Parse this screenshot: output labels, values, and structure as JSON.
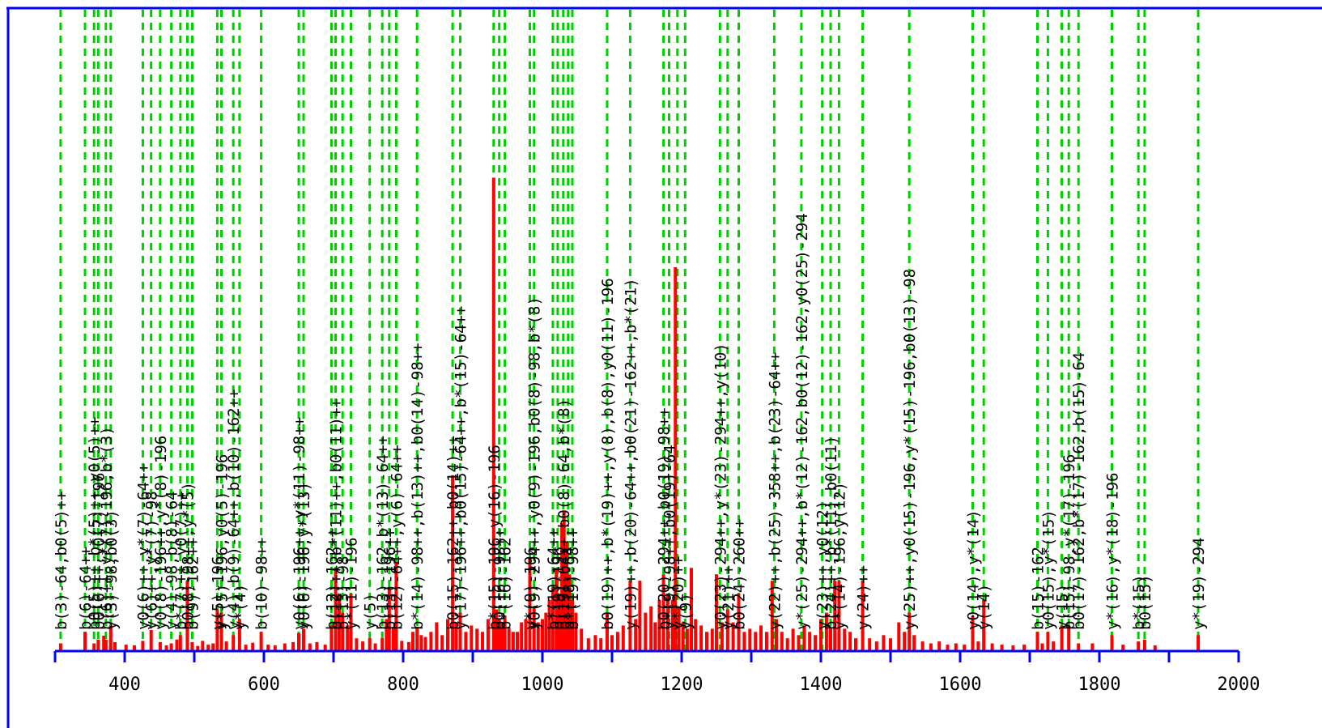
{
  "chart_data": {
    "type": "bar",
    "title": "",
    "xlabel": "",
    "ylabel": "",
    "xlim": [
      300,
      2000
    ],
    "x_ticks": [
      400,
      600,
      800,
      1000,
      1200,
      1400,
      1600,
      1800,
      2000
    ],
    "grid": false,
    "colors": {
      "peaks": "#ff0000",
      "annotation_lines": "#00cc00",
      "axis": "#0000ff",
      "text": "#000000"
    },
    "annotations": [
      {
        "x": 308,
        "text": "b(3)-64,b0(5)++"
      },
      {
        "x": 343,
        "text": "b(6)-64++"
      },
      {
        "x": 356,
        "text": "b0(5)++,b*(5)++,y0(5)++"
      },
      {
        "x": 362,
        "text": "b0(6)++,y0(7)-196"
      },
      {
        "x": 373,
        "text": "b(6)++,y*(7)-196,b*(3)"
      },
      {
        "x": 380,
        "text": "y(3)-98,b0(3)"
      },
      {
        "x": 426,
        "text": "y0(6)++,y*(7)-64++"
      },
      {
        "x": 438,
        "text": "y(6)++,y*(7)-98"
      },
      {
        "x": 451,
        "text": "y0(8)-196++,y*(8)-196"
      },
      {
        "x": 467,
        "text": "y(4)-98,b(8)-64"
      },
      {
        "x": 480,
        "text": "b*(7)++,y0(7)++"
      },
      {
        "x": 490,
        "text": "b0(8)-98++,y*(5)"
      },
      {
        "x": 497,
        "text": "b(9)-162++"
      },
      {
        "x": 533,
        "text": "y(5)-196"
      },
      {
        "x": 539,
        "text": "y*(5)-196,y0(5)-196"
      },
      {
        "x": 556,
        "text": "y(4),b(9)-64++,b(10)-162++"
      },
      {
        "x": 565,
        "text": "y*(4)"
      },
      {
        "x": 596,
        "text": "b(10)-98++"
      },
      {
        "x": 650,
        "text": "y0(6)-196++,y*(11)-98++"
      },
      {
        "x": 657,
        "text": "y0(6)-196,y*(13)"
      },
      {
        "x": 697,
        "text": "b(12)-162++"
      },
      {
        "x": 703,
        "text": "b(12)++,b*(11)++,b0(11)++"
      },
      {
        "x": 713,
        "text": "b(13)-98"
      },
      {
        "x": 725,
        "text": "y*(11)-196"
      },
      {
        "x": 752,
        "text": "y(5)"
      },
      {
        "x": 770,
        "text": "b(13)-162,b*(13)-64++"
      },
      {
        "x": 780,
        "text": "b(13)-196++"
      },
      {
        "x": 790,
        "text": "b(12)-64++,y(6)-64++"
      },
      {
        "x": 820,
        "text": "b*(14)-98++,b(13)++,b0(14)-98++"
      },
      {
        "x": 871,
        "text": "b0(15)-162++,b0(14)++"
      },
      {
        "x": 882,
        "text": "y(17)-196++,b0(15)-64++,b*(15)-64++"
      },
      {
        "x": 930,
        "text": "b*(15)-196,y(16)-196"
      },
      {
        "x": 938,
        "text": "b0(16)-98++"
      },
      {
        "x": 946,
        "text": "b*(16)-162"
      },
      {
        "x": 982,
        "text": "y*(9)-196"
      },
      {
        "x": 988,
        "text": "y0(9)-294++,y0(9)-196,b0(8)-98,b*(8)"
      },
      {
        "x": 1015,
        "text": "b*(19)-64++"
      },
      {
        "x": 1022,
        "text": "b(19)-196"
      },
      {
        "x": 1030,
        "text": "b(19)-64++,b0(8)-64,b*(8)"
      },
      {
        "x": 1037,
        "text": "b*(18)-64"
      },
      {
        "x": 1043,
        "text": "b*(19)-98++"
      },
      {
        "x": 1093,
        "text": "b0(19)++,b*(19)++,y(8),b(8),y0(11)-196"
      },
      {
        "x": 1126,
        "text": "y(19)++,b(20)-64++,b0(21)-162++,b*(21)"
      },
      {
        "x": 1174,
        "text": "b0(20)-294++,b0(19)-98++"
      },
      {
        "x": 1182,
        "text": "y*(9)-98++,b0(19)-64"
      },
      {
        "x": 1194,
        "text": "y*(20)++"
      },
      {
        "x": 1205,
        "text": "y(9)"
      },
      {
        "x": 1255,
        "text": "y0(23)-294++,y*(23)-294++,y(10)"
      },
      {
        "x": 1266,
        "text": "y(21)++"
      },
      {
        "x": 1282,
        "text": "b0(24)-260++"
      },
      {
        "x": 1333,
        "text": "y(22)++,b(25)-358++,b(23)-64++"
      },
      {
        "x": 1372,
        "text": "y*(25)-294++,b*(12)-162,b0(12)-162,y0(25)-294"
      },
      {
        "x": 1402,
        "text": "y(23)++,y0(12)"
      },
      {
        "x": 1414,
        "text": "b(24)++,b*(11),b0(11)"
      },
      {
        "x": 1426,
        "text": "y*(14)-196,y(12)"
      },
      {
        "x": 1460,
        "text": "y(24)++"
      },
      {
        "x": 1527,
        "text": "y(25)++,y0(15)-196,y*(15)-196,b0(13)-98"
      },
      {
        "x": 1618,
        "text": "y0(14),y*(14)"
      },
      {
        "x": 1634,
        "text": "y(14)"
      },
      {
        "x": 1711,
        "text": "b(15)-162"
      },
      {
        "x": 1726,
        "text": "y0(15),y*(15)"
      },
      {
        "x": 1746,
        "text": "y(15)"
      },
      {
        "x": 1756,
        "text": "b(15)-98,y*(17)-196"
      },
      {
        "x": 1770,
        "text": "b0(17)-162,b*(17)-162,b(15)-64"
      },
      {
        "x": 1818,
        "text": "y*(16),y*(18)-196"
      },
      {
        "x": 1856,
        "text": "b*(15)"
      },
      {
        "x": 1865,
        "text": "b0(15)"
      },
      {
        "x": 1942,
        "text": "y*(19)-294"
      }
    ],
    "peaks": [
      {
        "x": 308,
        "y": 0.012
      },
      {
        "x": 343,
        "y": 0.03
      },
      {
        "x": 356,
        "y": 0.012
      },
      {
        "x": 362,
        "y": 0.018
      },
      {
        "x": 370,
        "y": 0.024
      },
      {
        "x": 373,
        "y": 0.018
      },
      {
        "x": 380,
        "y": 0.04
      },
      {
        "x": 386,
        "y": 0.014
      },
      {
        "x": 402,
        "y": 0.01
      },
      {
        "x": 414,
        "y": 0.009
      },
      {
        "x": 426,
        "y": 0.016
      },
      {
        "x": 438,
        "y": 0.033
      },
      {
        "x": 451,
        "y": 0.014
      },
      {
        "x": 460,
        "y": 0.009
      },
      {
        "x": 467,
        "y": 0.012
      },
      {
        "x": 475,
        "y": 0.018
      },
      {
        "x": 480,
        "y": 0.025
      },
      {
        "x": 490,
        "y": 0.11
      },
      {
        "x": 497,
        "y": 0.014
      },
      {
        "x": 505,
        "y": 0.008
      },
      {
        "x": 512,
        "y": 0.016
      },
      {
        "x": 520,
        "y": 0.01
      },
      {
        "x": 527,
        "y": 0.012
      },
      {
        "x": 533,
        "y": 0.065
      },
      {
        "x": 539,
        "y": 0.06
      },
      {
        "x": 546,
        "y": 0.015
      },
      {
        "x": 556,
        "y": 0.025
      },
      {
        "x": 565,
        "y": 0.05
      },
      {
        "x": 574,
        "y": 0.01
      },
      {
        "x": 584,
        "y": 0.013
      },
      {
        "x": 596,
        "y": 0.03
      },
      {
        "x": 606,
        "y": 0.01
      },
      {
        "x": 616,
        "y": 0.009
      },
      {
        "x": 630,
        "y": 0.012
      },
      {
        "x": 642,
        "y": 0.014
      },
      {
        "x": 650,
        "y": 0.028
      },
      {
        "x": 657,
        "y": 0.035
      },
      {
        "x": 666,
        "y": 0.012
      },
      {
        "x": 676,
        "y": 0.014
      },
      {
        "x": 688,
        "y": 0.01
      },
      {
        "x": 697,
        "y": 0.04
      },
      {
        "x": 703,
        "y": 0.13
      },
      {
        "x": 708,
        "y": 0.09
      },
      {
        "x": 713,
        "y": 0.06
      },
      {
        "x": 720,
        "y": 0.04
      },
      {
        "x": 725,
        "y": 0.09
      },
      {
        "x": 733,
        "y": 0.02
      },
      {
        "x": 742,
        "y": 0.015
      },
      {
        "x": 752,
        "y": 0.02
      },
      {
        "x": 760,
        "y": 0.012
      },
      {
        "x": 770,
        "y": 0.02
      },
      {
        "x": 776,
        "y": 0.05
      },
      {
        "x": 780,
        "y": 0.1
      },
      {
        "x": 786,
        "y": 0.035
      },
      {
        "x": 790,
        "y": 0.14
      },
      {
        "x": 798,
        "y": 0.016
      },
      {
        "x": 808,
        "y": 0.014
      },
      {
        "x": 814,
        "y": 0.03
      },
      {
        "x": 820,
        "y": 0.038
      },
      {
        "x": 826,
        "y": 0.025
      },
      {
        "x": 832,
        "y": 0.022
      },
      {
        "x": 840,
        "y": 0.03
      },
      {
        "x": 848,
        "y": 0.045
      },
      {
        "x": 856,
        "y": 0.025
      },
      {
        "x": 864,
        "y": 0.05
      },
      {
        "x": 871,
        "y": 0.275
      },
      {
        "x": 876,
        "y": 0.045
      },
      {
        "x": 882,
        "y": 0.06
      },
      {
        "x": 890,
        "y": 0.03
      },
      {
        "x": 898,
        "y": 0.04
      },
      {
        "x": 906,
        "y": 0.035
      },
      {
        "x": 914,
        "y": 0.03
      },
      {
        "x": 922,
        "y": 0.05
      },
      {
        "x": 930,
        "y": 0.74
      },
      {
        "x": 934,
        "y": 0.065
      },
      {
        "x": 938,
        "y": 0.05
      },
      {
        "x": 942,
        "y": 0.045
      },
      {
        "x": 946,
        "y": 0.055
      },
      {
        "x": 952,
        "y": 0.035
      },
      {
        "x": 958,
        "y": 0.03
      },
      {
        "x": 964,
        "y": 0.03
      },
      {
        "x": 970,
        "y": 0.045
      },
      {
        "x": 976,
        "y": 0.05
      },
      {
        "x": 982,
        "y": 0.145
      },
      {
        "x": 988,
        "y": 0.07
      },
      {
        "x": 994,
        "y": 0.045
      },
      {
        "x": 1000,
        "y": 0.05
      },
      {
        "x": 1005,
        "y": 0.06
      },
      {
        "x": 1010,
        "y": 0.08
      },
      {
        "x": 1015,
        "y": 0.1
      },
      {
        "x": 1020,
        "y": 0.13
      },
      {
        "x": 1024,
        "y": 0.09
      },
      {
        "x": 1028,
        "y": 0.2
      },
      {
        "x": 1031,
        "y": 0.22
      },
      {
        "x": 1035,
        "y": 0.17
      },
      {
        "x": 1039,
        "y": 0.12
      },
      {
        "x": 1043,
        "y": 0.08
      },
      {
        "x": 1048,
        "y": 0.06
      },
      {
        "x": 1056,
        "y": 0.035
      },
      {
        "x": 1066,
        "y": 0.02
      },
      {
        "x": 1076,
        "y": 0.025
      },
      {
        "x": 1084,
        "y": 0.02
      },
      {
        "x": 1093,
        "y": 0.06
      },
      {
        "x": 1100,
        "y": 0.025
      },
      {
        "x": 1108,
        "y": 0.03
      },
      {
        "x": 1116,
        "y": 0.04
      },
      {
        "x": 1126,
        "y": 0.11
      },
      {
        "x": 1134,
        "y": 0.05
      },
      {
        "x": 1140,
        "y": 0.11
      },
      {
        "x": 1148,
        "y": 0.06
      },
      {
        "x": 1156,
        "y": 0.07
      },
      {
        "x": 1162,
        "y": 0.045
      },
      {
        "x": 1168,
        "y": 0.08
      },
      {
        "x": 1174,
        "y": 0.12
      },
      {
        "x": 1180,
        "y": 0.09
      },
      {
        "x": 1187,
        "y": 0.08
      },
      {
        "x": 1191,
        "y": 0.6
      },
      {
        "x": 1196,
        "y": 0.07
      },
      {
        "x": 1202,
        "y": 0.045
      },
      {
        "x": 1208,
        "y": 0.035
      },
      {
        "x": 1214,
        "y": 0.13
      },
      {
        "x": 1220,
        "y": 0.05
      },
      {
        "x": 1228,
        "y": 0.04
      },
      {
        "x": 1236,
        "y": 0.03
      },
      {
        "x": 1244,
        "y": 0.035
      },
      {
        "x": 1250,
        "y": 0.12
      },
      {
        "x": 1258,
        "y": 0.045
      },
      {
        "x": 1266,
        "y": 0.065
      },
      {
        "x": 1274,
        "y": 0.045
      },
      {
        "x": 1282,
        "y": 0.09
      },
      {
        "x": 1290,
        "y": 0.03
      },
      {
        "x": 1298,
        "y": 0.035
      },
      {
        "x": 1306,
        "y": 0.03
      },
      {
        "x": 1314,
        "y": 0.04
      },
      {
        "x": 1322,
        "y": 0.03
      },
      {
        "x": 1330,
        "y": 0.11
      },
      {
        "x": 1336,
        "y": 0.05
      },
      {
        "x": 1344,
        "y": 0.03
      },
      {
        "x": 1352,
        "y": 0.02
      },
      {
        "x": 1360,
        "y": 0.035
      },
      {
        "x": 1368,
        "y": 0.025
      },
      {
        "x": 1376,
        "y": 0.04
      },
      {
        "x": 1384,
        "y": 0.03
      },
      {
        "x": 1392,
        "y": 0.025
      },
      {
        "x": 1400,
        "y": 0.05
      },
      {
        "x": 1408,
        "y": 0.06
      },
      {
        "x": 1414,
        "y": 0.035
      },
      {
        "x": 1420,
        "y": 0.11
      },
      {
        "x": 1426,
        "y": 0.11
      },
      {
        "x": 1434,
        "y": 0.035
      },
      {
        "x": 1442,
        "y": 0.03
      },
      {
        "x": 1450,
        "y": 0.02
      },
      {
        "x": 1460,
        "y": 0.11
      },
      {
        "x": 1470,
        "y": 0.02
      },
      {
        "x": 1480,
        "y": 0.015
      },
      {
        "x": 1490,
        "y": 0.025
      },
      {
        "x": 1500,
        "y": 0.02
      },
      {
        "x": 1512,
        "y": 0.045
      },
      {
        "x": 1520,
        "y": 0.03
      },
      {
        "x": 1527,
        "y": 0.06
      },
      {
        "x": 1534,
        "y": 0.025
      },
      {
        "x": 1546,
        "y": 0.015
      },
      {
        "x": 1558,
        "y": 0.012
      },
      {
        "x": 1570,
        "y": 0.015
      },
      {
        "x": 1582,
        "y": 0.01
      },
      {
        "x": 1594,
        "y": 0.012
      },
      {
        "x": 1606,
        "y": 0.01
      },
      {
        "x": 1618,
        "y": 0.055
      },
      {
        "x": 1626,
        "y": 0.015
      },
      {
        "x": 1634,
        "y": 0.08
      },
      {
        "x": 1646,
        "y": 0.012
      },
      {
        "x": 1660,
        "y": 0.01
      },
      {
        "x": 1676,
        "y": 0.009
      },
      {
        "x": 1692,
        "y": 0.01
      },
      {
        "x": 1711,
        "y": 0.03
      },
      {
        "x": 1718,
        "y": 0.012
      },
      {
        "x": 1726,
        "y": 0.03
      },
      {
        "x": 1734,
        "y": 0.015
      },
      {
        "x": 1746,
        "y": 0.04
      },
      {
        "x": 1756,
        "y": 0.04
      },
      {
        "x": 1770,
        "y": 0.012
      },
      {
        "x": 1790,
        "y": 0.012
      },
      {
        "x": 1818,
        "y": 0.025
      },
      {
        "x": 1834,
        "y": 0.01
      },
      {
        "x": 1856,
        "y": 0.015
      },
      {
        "x": 1865,
        "y": 0.018
      },
      {
        "x": 1880,
        "y": 0.009
      },
      {
        "x": 1942,
        "y": 0.025
      }
    ]
  }
}
